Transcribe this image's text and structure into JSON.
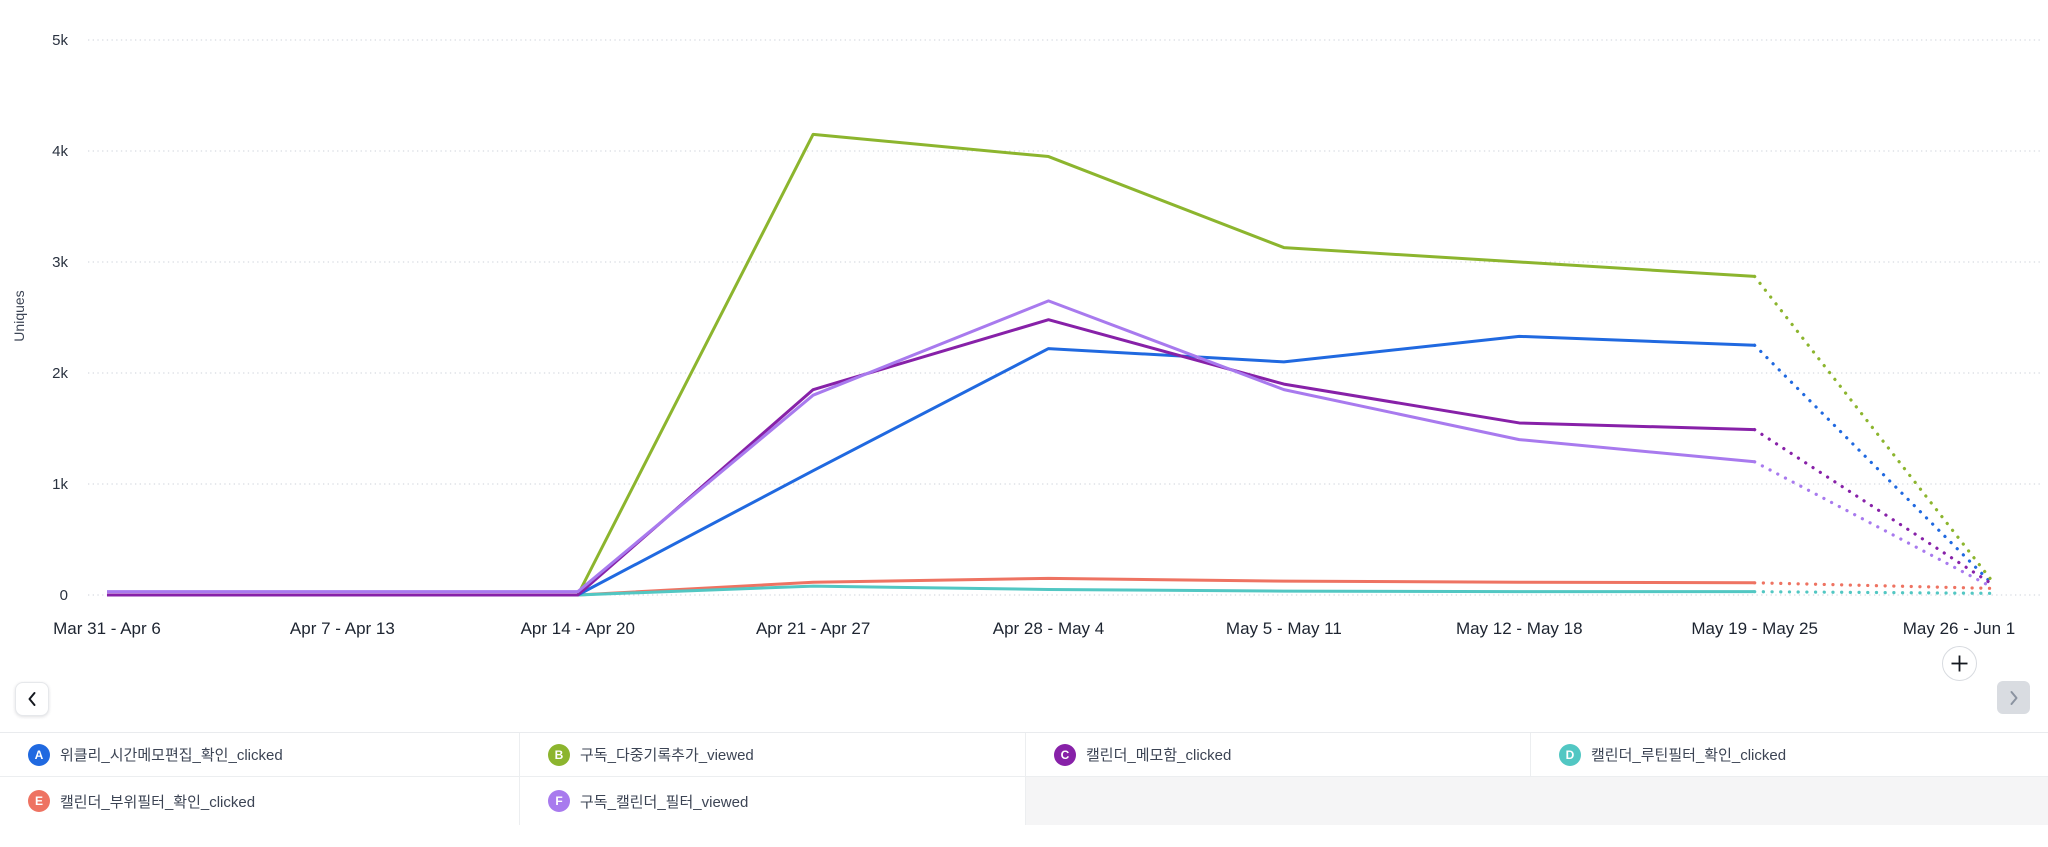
{
  "chart": {
    "y_axis_label": "Uniques",
    "y_ticks": [
      {
        "label": "5k",
        "value": 5000
      },
      {
        "label": "4k",
        "value": 4000
      },
      {
        "label": "3k",
        "value": 3000
      },
      {
        "label": "2k",
        "value": 2000
      },
      {
        "label": "1k",
        "value": 1000
      },
      {
        "label": "0",
        "value": 0
      }
    ]
  },
  "chart_data": {
    "type": "line",
    "title": "",
    "xlabel": "",
    "ylabel": "Uniques",
    "ylim": [
      0,
      5000
    ],
    "grid": "horizontal-dotted",
    "legend_position": "bottom-table",
    "last_segment_style": "dotted",
    "categories": [
      "Mar 31 - Apr 6",
      "Apr 7 - Apr 13",
      "Apr 14 - Apr 20",
      "Apr 21 - Apr 27",
      "Apr 28 - May 4",
      "May 5 - May 11",
      "May 12 - May 18",
      "May 19 - May 25",
      "May 26 - Jun 1"
    ],
    "series": [
      {
        "key": "A",
        "name": "위클리_시간메모편집_확인_clicked",
        "color": "#2069e0",
        "values": [
          0,
          0,
          0,
          1120,
          2220,
          2100,
          2330,
          2250,
          120
        ]
      },
      {
        "key": "B",
        "name": "구독_다중기록추가_viewed",
        "color": "#8cb52e",
        "values": [
          0,
          0,
          0,
          4150,
          3950,
          3130,
          3000,
          2870,
          150
        ]
      },
      {
        "key": "C",
        "name": "캘린더_메모함_clicked",
        "color": "#8721a8",
        "values": [
          0,
          0,
          0,
          1850,
          2480,
          1900,
          1550,
          1490,
          110
        ]
      },
      {
        "key": "D",
        "name": "캘린더_루틴필터_확인_clicked",
        "color": "#52c7c3",
        "values": [
          0,
          0,
          0,
          80,
          50,
          35,
          30,
          30,
          15
        ]
      },
      {
        "key": "E",
        "name": "캘린더_부위필터_확인_clicked",
        "color": "#ee7362",
        "values": [
          0,
          0,
          0,
          115,
          150,
          125,
          115,
          110,
          60
        ]
      },
      {
        "key": "F",
        "name": "구독_캘린더_필터_viewed",
        "color": "#a87aee",
        "values": [
          30,
          30,
          30,
          1800,
          2650,
          1850,
          1400,
          1200,
          80
        ]
      }
    ],
    "draw_order": [
      "E",
      "D",
      "A",
      "B",
      "C",
      "F"
    ]
  },
  "legend": {
    "rows": [
      [
        "A",
        "B",
        "C",
        "D"
      ],
      [
        "E",
        "F"
      ]
    ]
  },
  "controls": {
    "prev_icon": "chevron-left",
    "next_icon": "chevron-right",
    "add_icon": "plus"
  }
}
